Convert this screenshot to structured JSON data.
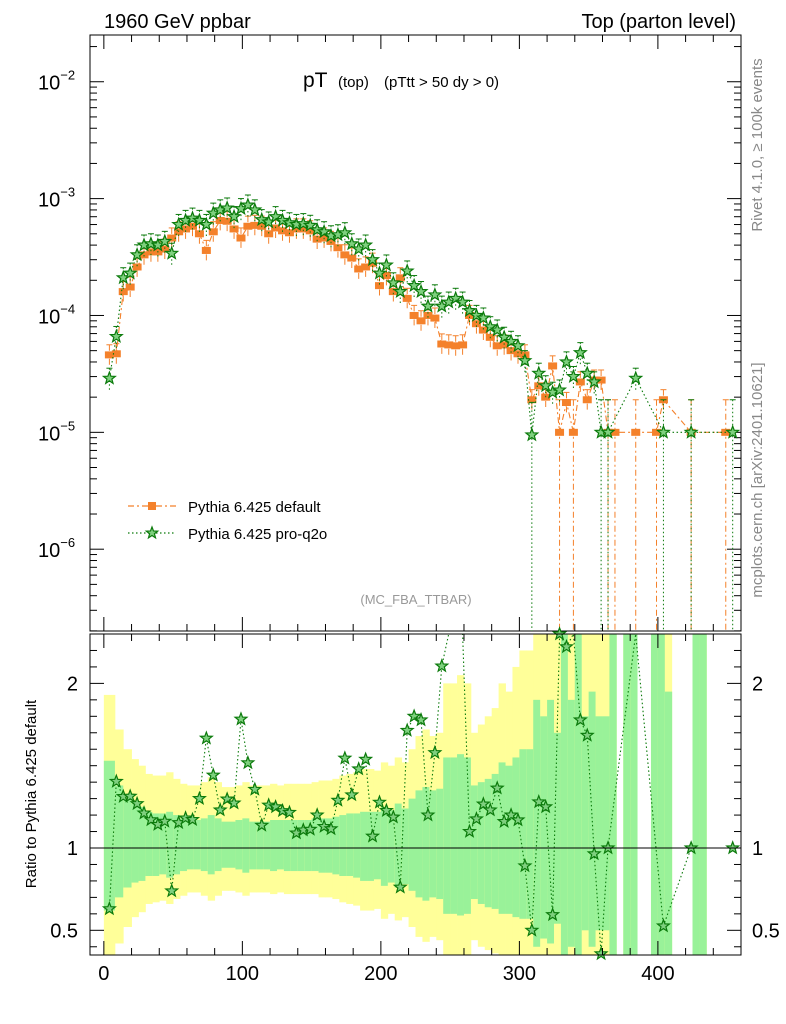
{
  "chart_data": {
    "type": "scatter",
    "header_left": "1960 GeV ppbar",
    "header_right": "Top (parton level)",
    "title_main": "pT",
    "title_sub": "(top)",
    "title_cut": "(pTtt > 50 dy > 0)",
    "analysis_label": "(MC_FBA_TTBAR)",
    "side_label_top": "Rivet 4.1.0, ≥ 100k events",
    "side_label_bottom": "mcplots.cern.ch [arXiv:2401.10621]",
    "xlim": [
      -10,
      460
    ],
    "x_ticks": [
      0,
      100,
      200,
      300,
      400
    ],
    "x_tick_labels": [
      "0",
      "100",
      "200",
      "300",
      "400"
    ],
    "main_ylim_log10": [
      -6.7,
      -1.6
    ],
    "main_y_ticks": [
      {
        "base": "10",
        "exp": "−2",
        "log": -2
      },
      {
        "base": "10",
        "exp": "−3",
        "log": -3
      },
      {
        "base": "10",
        "exp": "−4",
        "log": -4
      },
      {
        "base": "10",
        "exp": "−5",
        "log": -5
      },
      {
        "base": "10",
        "exp": "−6",
        "log": -6
      }
    ],
    "ratio_ylim": [
      0.35,
      2.3
    ],
    "ratio_y_ticks": [
      0.5,
      1,
      2
    ],
    "ratio_y_tick_labels": [
      "0.5",
      "1",
      "2"
    ],
    "ratio_ylabel": "Ratio to Pythia 6.425 default",
    "series": [
      {
        "name": "Pythia 6.425 default",
        "color": "#f4812b",
        "marker": "square",
        "line": "dashdot",
        "x": [
          4,
          9,
          14,
          19,
          24,
          29,
          34,
          39,
          44,
          49,
          54,
          59,
          64,
          69,
          74,
          79,
          84,
          89,
          94,
          99,
          104,
          109,
          114,
          119,
          124,
          129,
          134,
          139,
          144,
          149,
          154,
          159,
          164,
          169,
          174,
          179,
          184,
          189,
          194,
          199,
          204,
          209,
          214,
          219,
          224,
          229,
          234,
          239,
          244,
          249,
          254,
          259,
          264,
          269,
          274,
          279,
          284,
          289,
          294,
          299,
          304,
          309,
          314,
          319,
          324,
          329,
          334,
          339,
          344,
          349,
          354,
          359,
          364,
          369,
          384,
          399,
          404,
          424,
          449
        ],
        "y": [
          4.6e-05,
          4.7e-05,
          0.00016,
          0.000175,
          0.00026,
          0.00033,
          0.00035,
          0.00035,
          0.00037,
          0.00046,
          0.00052,
          0.00055,
          0.00058,
          0.0005,
          0.00036,
          0.00052,
          0.00065,
          0.00064,
          0.00055,
          0.00046,
          0.00058,
          0.00059,
          0.00058,
          0.0005,
          0.00056,
          0.00053,
          0.00051,
          0.00055,
          0.00055,
          0.00053,
          0.00045,
          0.00046,
          0.00043,
          0.00038,
          0.00033,
          0.00031,
          0.00025,
          0.00026,
          0.00028,
          0.00018,
          0.00022,
          0.00016,
          0.00021,
          0.00014,
          0.0001,
          9e-05,
          0.0001,
          9.5e-05,
          5.7e-05,
          5.6e-05,
          5.5e-05,
          5.6e-05,
          0.0001,
          8.5e-05,
          7.5e-05,
          6.5e-05,
          5.5e-05,
          5.6e-05,
          5e-05,
          4.7e-05,
          4.6e-05,
          1.9e-05,
          2.5e-05,
          2e-05,
          3.7e-05,
          1e-05,
          1.8e-05,
          1e-05,
          2.7e-05,
          1.9e-05,
          2.8e-05,
          2.8e-05,
          1e-05,
          1e-05,
          1e-05,
          1e-05,
          1.9e-05,
          1e-05,
          1e-05
        ]
      },
      {
        "name": "Pythia 6.425 pro-q2o",
        "color": "#0b7a0b",
        "marker": "star",
        "line": "dotted",
        "x": [
          4,
          9,
          14,
          19,
          24,
          29,
          34,
          39,
          44,
          49,
          54,
          59,
          64,
          69,
          74,
          79,
          84,
          89,
          94,
          99,
          104,
          109,
          114,
          119,
          124,
          129,
          134,
          139,
          144,
          149,
          154,
          159,
          164,
          169,
          174,
          179,
          184,
          189,
          194,
          199,
          204,
          209,
          214,
          219,
          224,
          229,
          234,
          239,
          244,
          249,
          254,
          259,
          264,
          269,
          274,
          279,
          284,
          289,
          294,
          299,
          304,
          309,
          314,
          319,
          324,
          329,
          334,
          339,
          344,
          349,
          354,
          359,
          364,
          384,
          404,
          424,
          454
        ],
        "y": [
          2.9e-05,
          6.6e-05,
          0.00021,
          0.00023,
          0.00033,
          0.0004,
          0.00041,
          0.0004,
          0.00043,
          0.00034,
          0.0006,
          0.00065,
          0.00068,
          0.00065,
          0.0006,
          0.00075,
          0.0008,
          0.00083,
          0.0007,
          0.00082,
          0.00088,
          0.0008,
          0.00066,
          0.00063,
          0.0007,
          0.00065,
          0.00062,
          0.0006,
          0.00061,
          0.00059,
          0.00054,
          0.00052,
          0.00048,
          0.00049,
          0.00051,
          0.00041,
          0.00037,
          0.0004,
          0.0003,
          0.00023,
          0.00027,
          0.00019,
          0.00016,
          0.00024,
          0.00018,
          0.00016,
          0.00012,
          0.00015,
          0.00012,
          0.00013,
          0.00014,
          0.00013,
          0.00011,
          0.0001,
          9.5e-05,
          8e-05,
          7.5e-05,
          6.5e-05,
          6e-05,
          5.5e-05,
          4.1e-05,
          9.5e-06,
          3.2e-05,
          2.5e-05,
          2.2e-05,
          2.3e-05,
          4e-05,
          3e-05,
          4.8e-05,
          3.2e-05,
          2.7e-05,
          1e-05,
          1e-05,
          2.9e-05,
          1e-05,
          1e-05,
          1e-05
        ]
      }
    ],
    "ratio_band_edges": [
      0,
      8,
      14,
      20,
      25,
      30,
      35,
      40,
      45,
      50,
      55,
      60,
      65,
      70,
      75,
      80,
      85,
      90,
      95,
      100,
      105,
      110,
      115,
      120,
      125,
      130,
      135,
      140,
      145,
      150,
      155,
      160,
      165,
      170,
      175,
      180,
      185,
      190,
      195,
      200,
      205,
      210,
      215,
      220,
      225,
      230,
      235,
      240,
      245,
      250,
      255,
      260,
      265,
      270,
      275,
      280,
      285,
      290,
      295,
      300,
      305,
      310,
      315,
      320,
      325,
      330,
      335,
      340,
      345,
      350,
      355,
      360,
      365,
      370,
      375,
      380,
      385,
      390,
      395,
      400,
      405,
      410,
      415,
      420,
      425,
      430,
      435,
      440,
      445,
      450,
      455,
      460
    ],
    "ratio_band_green_lo": [
      0.62,
      0.7,
      0.76,
      0.79,
      0.8,
      0.83,
      0.83,
      0.84,
      0.82,
      0.84,
      0.86,
      0.87,
      0.87,
      0.86,
      0.84,
      0.86,
      0.88,
      0.88,
      0.87,
      0.85,
      0.87,
      0.87,
      0.87,
      0.86,
      0.87,
      0.86,
      0.86,
      0.86,
      0.86,
      0.86,
      0.85,
      0.85,
      0.84,
      0.83,
      0.83,
      0.82,
      0.8,
      0.8,
      0.81,
      0.77,
      0.79,
      0.76,
      0.78,
      0.74,
      0.7,
      0.68,
      0.7,
      0.69,
      0.6,
      0.6,
      0.59,
      0.6,
      0.69,
      0.66,
      0.64,
      0.63,
      0.6,
      0.6,
      0.58,
      0.57,
      0.57,
      0.4,
      0.45,
      0.42,
      0.54,
      0.3,
      0.4,
      0.3,
      0.5,
      0.4,
      0.5,
      0.5,
      0.3,
      0.35,
      0.3,
      0.3,
      0.3,
      0.3,
      0.3,
      0.3,
      0.35,
      0.3,
      0.3,
      0.3,
      0.3,
      0.3,
      0.3,
      0.3,
      0.3,
      0.3,
      0.3
    ],
    "ratio_band_green_hi": [
      1.53,
      1.38,
      1.3,
      1.27,
      1.25,
      1.22,
      1.21,
      1.21,
      1.22,
      1.2,
      1.18,
      1.17,
      1.17,
      1.18,
      1.2,
      1.18,
      1.16,
      1.16,
      1.17,
      1.18,
      1.16,
      1.16,
      1.16,
      1.17,
      1.17,
      1.17,
      1.17,
      1.17,
      1.17,
      1.18,
      1.18,
      1.18,
      1.19,
      1.2,
      1.21,
      1.21,
      1.22,
      1.22,
      1.22,
      1.25,
      1.23,
      1.27,
      1.24,
      1.3,
      1.35,
      1.37,
      1.35,
      1.36,
      1.55,
      1.55,
      1.57,
      1.55,
      1.38,
      1.4,
      1.42,
      1.45,
      1.52,
      1.5,
      1.55,
      1.6,
      1.6,
      1.9,
      1.8,
      1.9,
      1.7,
      2.4,
      1.9,
      2.4,
      1.8,
      1.95,
      1.8,
      1.8,
      2.4,
      2.4,
      2.4,
      2.4,
      2.4,
      2.4,
      2.4,
      2.4,
      1.95,
      2.4,
      2.4,
      2.4,
      2.4,
      2.4,
      2.4,
      2.4,
      2.4,
      2.4,
      2.4
    ],
    "ratio_band_yellow_lo": [
      0.35,
      0.42,
      0.52,
      0.58,
      0.61,
      0.66,
      0.67,
      0.68,
      0.66,
      0.69,
      0.71,
      0.73,
      0.73,
      0.71,
      0.68,
      0.71,
      0.74,
      0.74,
      0.73,
      0.71,
      0.73,
      0.73,
      0.73,
      0.72,
      0.73,
      0.72,
      0.72,
      0.72,
      0.72,
      0.72,
      0.7,
      0.7,
      0.69,
      0.67,
      0.66,
      0.65,
      0.62,
      0.62,
      0.63,
      0.57,
      0.6,
      0.56,
      0.58,
      0.52,
      0.46,
      0.43,
      0.46,
      0.44,
      0.35,
      0.35,
      0.35,
      0.35,
      0.44,
      0.4,
      0.38,
      0.36,
      0.35,
      0.35,
      0.35,
      0.35,
      0.35,
      0.3,
      0.3,
      0.3,
      0.3,
      0.3,
      0.3,
      0.3,
      0.3,
      0.3,
      0.3,
      0.3,
      0.3,
      0.3,
      0.3,
      0.3,
      0.3,
      0.3,
      0.3,
      0.3,
      0.3,
      0.3,
      0.3,
      0.3,
      0.3,
      0.3,
      0.3,
      0.3,
      0.3,
      0.3,
      0.3
    ],
    "ratio_band_yellow_hi": [
      1.93,
      1.72,
      1.6,
      1.54,
      1.5,
      1.45,
      1.44,
      1.44,
      1.46,
      1.42,
      1.39,
      1.38,
      1.38,
      1.4,
      1.43,
      1.4,
      1.37,
      1.37,
      1.38,
      1.4,
      1.38,
      1.38,
      1.38,
      1.39,
      1.38,
      1.39,
      1.39,
      1.39,
      1.39,
      1.4,
      1.41,
      1.41,
      1.42,
      1.44,
      1.45,
      1.46,
      1.48,
      1.48,
      1.47,
      1.52,
      1.5,
      1.55,
      1.52,
      1.6,
      1.68,
      1.72,
      1.68,
      1.7,
      2.0,
      2.0,
      2.05,
      2.0,
      1.7,
      1.75,
      1.8,
      1.85,
      2.0,
      1.95,
      2.1,
      2.2,
      2.2,
      2.4,
      2.4,
      2.4,
      2.3,
      2.4,
      2.4,
      2.4,
      2.4,
      2.4,
      2.4,
      2.4,
      2.4,
      2.4,
      2.4,
      2.4,
      2.4,
      2.4,
      2.4,
      2.4,
      2.4,
      2.4,
      2.4,
      2.4,
      2.4,
      2.4,
      2.4,
      2.4,
      2.4,
      2.4,
      2.4
    ],
    "ratio_band_gaps": [
      [
        370,
        375
      ],
      [
        385,
        395
      ],
      [
        410,
        425
      ],
      [
        435,
        460
      ]
    ]
  }
}
